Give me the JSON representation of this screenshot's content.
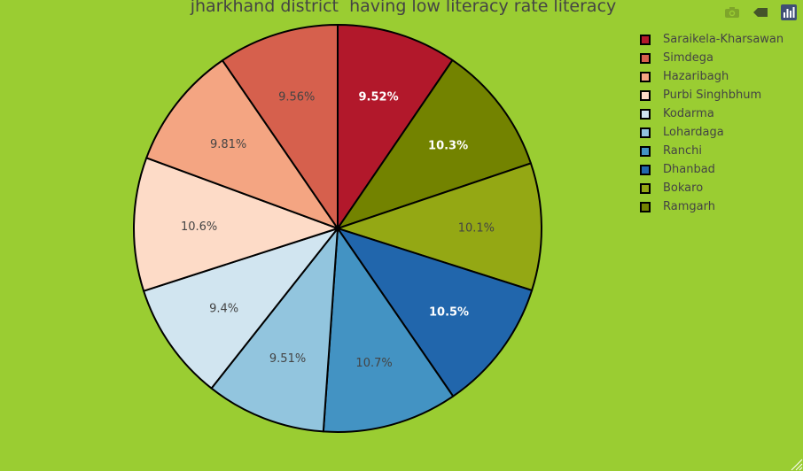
{
  "chart_data": {
    "type": "pie",
    "title": "jharkhand district  having low literacy rate literacy",
    "slices": [
      {
        "label": "Saraikela-Kharsawan",
        "value": 9.52,
        "text": "9.52%",
        "color": "#b2182b",
        "text_color": "#ffffff"
      },
      {
        "label": "Ramgarh",
        "value": 10.3,
        "text": "10.3%",
        "color": "#738300",
        "text_color": "#ffffff"
      },
      {
        "label": "Bokaro",
        "value": 10.1,
        "text": "10.1%",
        "color": "#94a814",
        "text_color": "#444444"
      },
      {
        "label": "Dhanbad",
        "value": 10.5,
        "text": "10.5%",
        "color": "#2166ac",
        "text_color": "#ffffff"
      },
      {
        "label": "Ranchi",
        "value": 10.7,
        "text": "10.7%",
        "color": "#4393c3",
        "text_color": "#444444"
      },
      {
        "label": "Lohardaga",
        "value": 9.51,
        "text": "9.51%",
        "color": "#92c5de",
        "text_color": "#444444"
      },
      {
        "label": "Kodarma",
        "value": 9.4,
        "text": "9.4%",
        "color": "#d1e5f0",
        "text_color": "#444444"
      },
      {
        "label": "Purbi Singhbhum",
        "value": 10.6,
        "text": "10.6%",
        "color": "#fddbc7",
        "text_color": "#444444"
      },
      {
        "label": "Hazaribagh",
        "value": 9.81,
        "text": "9.81%",
        "color": "#f4a582",
        "text_color": "#444444"
      },
      {
        "label": "Simdega",
        "value": 9.56,
        "text": "9.56%",
        "color": "#d6604d",
        "text_color": "#444444"
      }
    ],
    "legend": [
      "Saraikela-Kharsawan",
      "Simdega",
      "Hazaribagh",
      "Purbi Singhbhum",
      "Kodarma",
      "Lohardaga",
      "Ranchi",
      "Dhanbad",
      "Bokaro",
      "Ramgarh"
    ],
    "legend_placement": "top-right"
  },
  "colors": {
    "background": "#9acd32",
    "slice_border": "#000000"
  },
  "modebar": {
    "icons": [
      "camera-icon",
      "tag-icon",
      "plotly-logo-icon"
    ]
  }
}
